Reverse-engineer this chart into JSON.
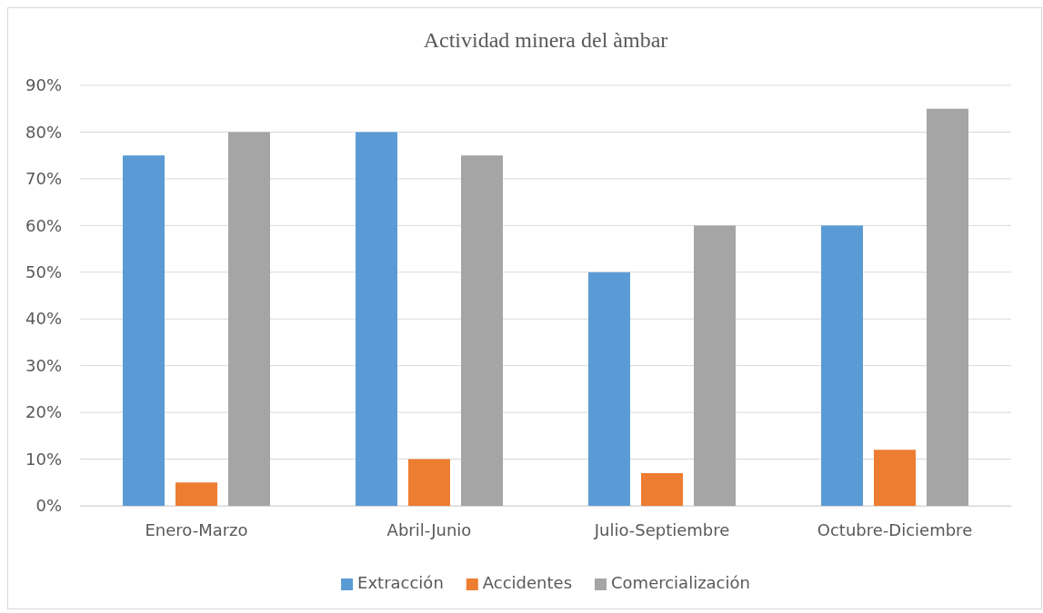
{
  "chart_data": {
    "type": "bar",
    "title": "Actividad minera del àmbar",
    "categories": [
      "Enero-Marzo",
      "Abril-Junio",
      "Julio-Septiembre",
      "Octubre-Diciembre"
    ],
    "series": [
      {
        "name": "Extracción",
        "color": "#5b9bd5",
        "values": [
          75,
          80,
          50,
          60
        ]
      },
      {
        "name": "Accidentes",
        "color": "#ed7d31",
        "values": [
          5,
          10,
          7,
          12
        ]
      },
      {
        "name": "Comercialización",
        "color": "#a5a5a5",
        "values": [
          80,
          75,
          60,
          85
        ]
      }
    ],
    "ylim": [
      0,
      90
    ],
    "yticks": [
      {
        "value": 0,
        "label": "0%"
      },
      {
        "value": 10,
        "label": "10%"
      },
      {
        "value": 20,
        "label": "20%"
      },
      {
        "value": 30,
        "label": "30%"
      },
      {
        "value": 40,
        "label": "40%"
      },
      {
        "value": 50,
        "label": "50%"
      },
      {
        "value": 60,
        "label": "60%"
      },
      {
        "value": 70,
        "label": "70%"
      },
      {
        "value": 80,
        "label": "80%"
      },
      {
        "value": 90,
        "label": "90%"
      }
    ],
    "grid": "y",
    "legend": "bottom"
  }
}
